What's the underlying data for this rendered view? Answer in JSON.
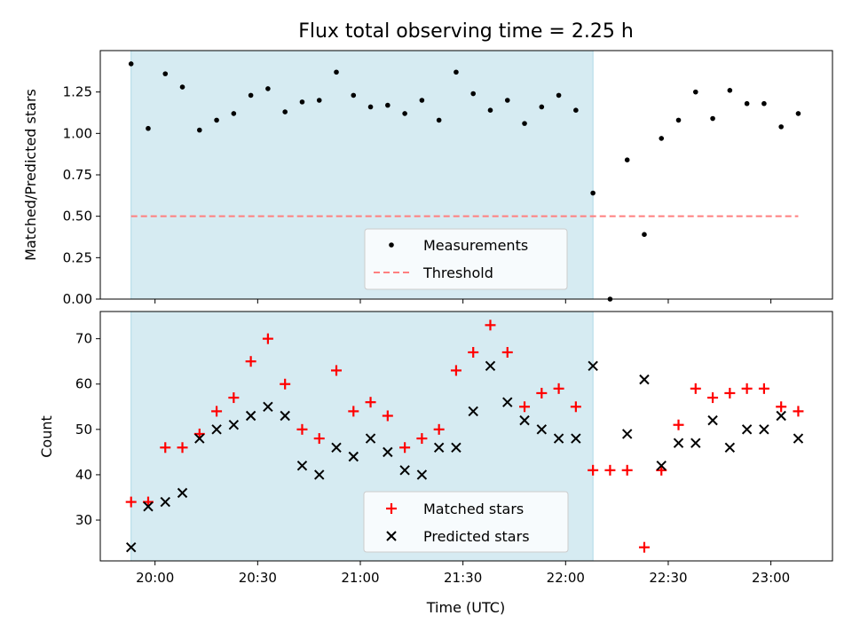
{
  "chart_data": {
    "type": "scatter",
    "title": "Flux total observing time = 2.25 h",
    "xlabel": "Time (UTC)",
    "x_ticks": [
      "20:00",
      "20:30",
      "21:00",
      "21:30",
      "22:00",
      "22:30",
      "23:00"
    ],
    "x_tick_minutes": [
      0,
      30,
      60,
      90,
      120,
      150,
      180
    ],
    "x_axis_start": "20:00",
    "xlim_minutes": [
      -16,
      198
    ],
    "highlight_span_minutes": [
      -7,
      128
    ],
    "colors": {
      "highlight": "#add8e6",
      "measurements": "#000000",
      "threshold": "#ff7f7f",
      "matched": "#ff0000",
      "predicted": "#000000"
    },
    "top": {
      "ylabel": "Matched/Predicted stars",
      "ylim": [
        0,
        1.5
      ],
      "y_ticks": [
        "0.00",
        "0.25",
        "0.50",
        "0.75",
        "1.00",
        "1.25"
      ],
      "y_tick_values": [
        0,
        0.25,
        0.5,
        0.75,
        1.0,
        1.25
      ],
      "threshold": {
        "name": "Threshold",
        "y": 0.5,
        "x_range_minutes": [
          -7,
          188
        ]
      },
      "measurements": {
        "name": "Measurements",
        "x": [
          -7,
          -2,
          3,
          8,
          13,
          18,
          23,
          28,
          33,
          38,
          43,
          48,
          53,
          58,
          63,
          68,
          73,
          78,
          83,
          88,
          93,
          98,
          103,
          108,
          113,
          118,
          123,
          128,
          133,
          138,
          143,
          148,
          153,
          158,
          163,
          168,
          173,
          178,
          183,
          188
        ],
        "y": [
          1.42,
          1.03,
          1.36,
          1.28,
          1.02,
          1.08,
          1.12,
          1.23,
          1.27,
          1.13,
          1.19,
          1.2,
          1.37,
          1.23,
          1.16,
          1.17,
          1.12,
          1.2,
          1.08,
          1.37,
          1.24,
          1.14,
          1.2,
          1.06,
          1.16,
          1.23,
          1.14,
          0.64,
          0.0,
          0.84,
          0.39,
          0.97,
          1.08,
          1.25,
          1.09,
          1.26,
          1.18,
          1.18,
          1.04,
          1.12
        ]
      },
      "legend": [
        "Measurements",
        "Threshold"
      ],
      "legend_position": "lower center"
    },
    "bottom": {
      "ylabel": "Count",
      "ylim": [
        21,
        76
      ],
      "y_ticks": [
        "30",
        "40",
        "50",
        "60",
        "70"
      ],
      "y_tick_values": [
        30,
        40,
        50,
        60,
        70
      ],
      "series": [
        {
          "name": "Matched stars",
          "marker": "plus",
          "x": [
            -7,
            -2,
            3,
            8,
            13,
            18,
            23,
            28,
            33,
            38,
            43,
            48,
            53,
            58,
            63,
            68,
            73,
            78,
            83,
            88,
            93,
            98,
            103,
            108,
            113,
            118,
            123,
            128,
            133,
            138,
            143,
            148,
            153,
            158,
            163,
            168,
            173,
            178,
            183,
            188
          ],
          "y": [
            34,
            34,
            46,
            46,
            49,
            54,
            57,
            65,
            70,
            60,
            50,
            48,
            63,
            54,
            56,
            53,
            46,
            48,
            50,
            63,
            67,
            73,
            67,
            55,
            58,
            59,
            55,
            41,
            41,
            41,
            24,
            41,
            51,
            59,
            57,
            58,
            59,
            59,
            55,
            54
          ]
        },
        {
          "name": "Predicted stars",
          "marker": "x",
          "x": [
            -7,
            -2,
            3,
            8,
            13,
            18,
            23,
            28,
            33,
            38,
            43,
            48,
            53,
            58,
            63,
            68,
            73,
            78,
            83,
            88,
            93,
            98,
            103,
            108,
            113,
            118,
            123,
            128,
            138,
            143,
            148,
            153,
            158,
            163,
            168,
            173,
            178,
            183,
            188
          ],
          "y": [
            24,
            33,
            34,
            36,
            48,
            50,
            51,
            53,
            55,
            53,
            42,
            40,
            46,
            44,
            48,
            45,
            41,
            40,
            46,
            46,
            54,
            64,
            56,
            52,
            50,
            48,
            48,
            64,
            49,
            61,
            42,
            47,
            47,
            52,
            46,
            50,
            50,
            53,
            48
          ]
        }
      ],
      "legend": [
        "Matched stars",
        "Predicted stars"
      ],
      "legend_position": "lower center"
    }
  }
}
